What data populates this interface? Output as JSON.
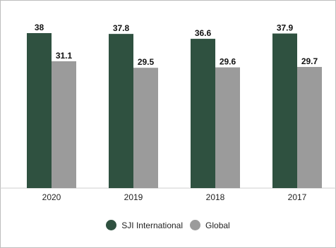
{
  "chart_data": {
    "type": "bar",
    "title": "",
    "xlabel": "",
    "ylabel": "",
    "categories": [
      "2020",
      "2019",
      "2018",
      "2017"
    ],
    "series": [
      {
        "name": "SJI International",
        "values": [
          38,
          37.8,
          36.6,
          37.9
        ],
        "color": "#2f5140"
      },
      {
        "name": "Global",
        "values": [
          31.1,
          29.5,
          29.6,
          29.7
        ],
        "color": "#9b9b9b"
      }
    ],
    "ylim": [
      0,
      40
    ],
    "grid": false,
    "data_labels": true,
    "legend_position": "bottom"
  }
}
